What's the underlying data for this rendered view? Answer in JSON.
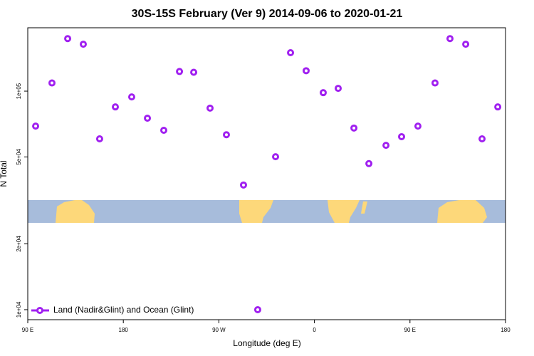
{
  "chart_data": {
    "type": "scatter",
    "title": "30S-15S February (Ver 9)   2014-09-06 to 2020-01-21",
    "x_label": "Longitude (deg E)",
    "y_label": "N Total",
    "y_log": true,
    "xlim": [
      90,
      540
    ],
    "ylim": [
      9000,
      195000
    ],
    "xticks": [
      {
        "value": 90,
        "label": "90 E"
      },
      {
        "value": 180,
        "label": "180"
      },
      {
        "value": 270,
        "label": "90 W"
      },
      {
        "value": 360,
        "label": "0"
      },
      {
        "value": 450,
        "label": "90 E"
      },
      {
        "value": 540,
        "label": "180"
      }
    ],
    "yticks": [
      {
        "value": 10000,
        "label": "1e+04"
      },
      {
        "value": 20000,
        "label": "2e+04"
      },
      {
        "value": 50000,
        "label": "5e+04"
      },
      {
        "value": 100000,
        "label": "1e+05"
      }
    ],
    "legend_position": "bottom-left",
    "series": [
      {
        "name": "Land (Nadir&Glint) and Ocean (Glint)",
        "color": "#a020f0",
        "x": [
          97.4,
          112.8,
          127.6,
          142.3,
          157.7,
          172.5,
          187.9,
          202.7,
          218.1,
          232.9,
          246.3,
          261.7,
          277.1,
          293.2,
          306.6,
          323.4,
          337.5,
          352.2,
          368.3,
          382.4,
          397.2,
          411.3,
          427.4,
          442.1,
          457.5,
          473.6,
          487.7,
          502.5,
          517.9,
          532.7
        ],
        "values": [
          69200,
          109000,
          174000,
          164000,
          60500,
          84700,
          94100,
          75200,
          66200,
          123000,
          122000,
          83600,
          63200,
          37200,
          10000,
          50100,
          150000,
          124000,
          98400,
          103000,
          67800,
          46600,
          56500,
          61900,
          69200,
          109000,
          174000,
          164000,
          60500,
          84700
        ]
      }
    ]
  }
}
